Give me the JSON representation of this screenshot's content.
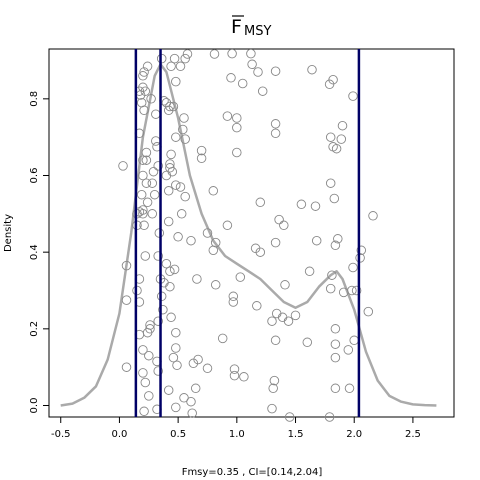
{
  "chart_data": {
    "type": "scatter",
    "title_main": "F",
    "title_sub": "MSY",
    "xlabel": "Fmsy=0.35 , CI=[0.14,2.04]",
    "ylabel": "Density",
    "xlim": [
      -0.6,
      2.85
    ],
    "ylim": [
      -0.03,
      0.93
    ],
    "x_ticks": [
      -0.5,
      0.0,
      0.5,
      1.0,
      1.5,
      2.0,
      2.5
    ],
    "x_tick_labels": [
      "-0.5",
      "0.0",
      "0.5",
      "1.0",
      "1.5",
      "2.0",
      "2.5"
    ],
    "y_ticks": [
      0.0,
      0.2,
      0.4,
      0.6,
      0.8
    ],
    "y_tick_labels": [
      "0.0",
      "0.2",
      "0.4",
      "0.6",
      "0.8"
    ],
    "vlines": [
      0.14,
      0.35,
      2.04
    ],
    "vline_color": "#000066",
    "density_color": "#aaaaaa",
    "point_color": "#888888",
    "density_curve": {
      "x": [
        -0.5,
        -0.4,
        -0.3,
        -0.2,
        -0.1,
        0.0,
        0.1,
        0.2,
        0.3,
        0.35,
        0.4,
        0.5,
        0.6,
        0.7,
        0.8,
        0.9,
        1.0,
        1.1,
        1.2,
        1.3,
        1.4,
        1.5,
        1.6,
        1.7,
        1.8,
        1.85,
        1.9,
        2.0,
        2.1,
        2.2,
        2.3,
        2.4,
        2.5,
        2.6,
        2.7
      ],
      "y": [
        0.0,
        0.005,
        0.02,
        0.05,
        0.12,
        0.24,
        0.45,
        0.7,
        0.86,
        0.89,
        0.87,
        0.75,
        0.6,
        0.5,
        0.43,
        0.39,
        0.37,
        0.35,
        0.33,
        0.3,
        0.27,
        0.255,
        0.27,
        0.31,
        0.34,
        0.35,
        0.33,
        0.25,
        0.14,
        0.065,
        0.025,
        0.01,
        0.003,
        0.001,
        0.0
      ]
    },
    "points": [
      [
        0.36,
        0.905
      ],
      [
        0.47,
        0.905
      ],
      [
        0.56,
        0.905
      ],
      [
        0.58,
        0.917
      ],
      [
        0.81,
        0.917
      ],
      [
        0.96,
        0.918
      ],
      [
        1.12,
        0.918
      ],
      [
        0.24,
        0.885
      ],
      [
        0.44,
        0.885
      ],
      [
        0.52,
        0.885
      ],
      [
        1.13,
        0.89
      ],
      [
        1.64,
        0.876
      ],
      [
        1.33,
        0.872
      ],
      [
        1.18,
        0.87
      ],
      [
        0.2,
        0.86
      ],
      [
        0.21,
        0.87
      ],
      [
        0.95,
        0.855
      ],
      [
        1.05,
        0.84
      ],
      [
        1.82,
        0.85
      ],
      [
        1.79,
        0.838
      ],
      [
        1.22,
        0.82
      ],
      [
        0.48,
        0.845
      ],
      [
        0.2,
        0.83
      ],
      [
        0.22,
        0.82
      ],
      [
        0.18,
        0.81
      ],
      [
        1.99,
        0.807
      ],
      [
        0.27,
        0.8
      ],
      [
        0.38,
        0.795
      ],
      [
        0.4,
        0.79
      ],
      [
        0.43,
        0.78
      ],
      [
        0.46,
        0.78
      ],
      [
        0.42,
        0.77
      ],
      [
        0.19,
        0.79
      ],
      [
        0.17,
        0.82
      ],
      [
        0.21,
        0.77
      ],
      [
        0.31,
        0.76
      ],
      [
        0.55,
        0.75
      ],
      [
        0.92,
        0.755
      ],
      [
        1.0,
        0.75
      ],
      [
        1.0,
        0.725
      ],
      [
        1.33,
        0.735
      ],
      [
        1.33,
        0.71
      ],
      [
        1.9,
        0.73
      ],
      [
        1.8,
        0.7
      ],
      [
        1.89,
        0.695
      ],
      [
        0.54,
        0.72
      ],
      [
        0.48,
        0.7
      ],
      [
        0.56,
        0.695
      ],
      [
        0.17,
        0.71
      ],
      [
        0.31,
        0.69
      ],
      [
        0.32,
        0.675
      ],
      [
        1.82,
        0.675
      ],
      [
        1.85,
        0.67
      ],
      [
        0.23,
        0.66
      ],
      [
        0.44,
        0.655
      ],
      [
        0.7,
        0.665
      ],
      [
        0.7,
        0.645
      ],
      [
        0.2,
        0.64
      ],
      [
        0.23,
        0.64
      ],
      [
        1.0,
        0.66
      ],
      [
        0.43,
        0.63
      ],
      [
        0.33,
        0.625
      ],
      [
        0.43,
        0.62
      ],
      [
        0.45,
        0.61
      ],
      [
        0.4,
        0.6
      ],
      [
        0.29,
        0.61
      ],
      [
        0.03,
        0.625
      ],
      [
        0.2,
        0.6
      ],
      [
        0.28,
        0.58
      ],
      [
        0.23,
        0.58
      ],
      [
        0.48,
        0.575
      ],
      [
        0.52,
        0.57
      ],
      [
        0.3,
        0.55
      ],
      [
        0.42,
        0.56
      ],
      [
        0.19,
        0.55
      ],
      [
        0.8,
        0.56
      ],
      [
        1.8,
        0.58
      ],
      [
        1.83,
        0.54
      ],
      [
        0.24,
        0.53
      ],
      [
        0.56,
        0.545
      ],
      [
        0.2,
        0.51
      ],
      [
        0.28,
        0.5
      ],
      [
        0.17,
        0.505
      ],
      [
        0.2,
        0.5
      ],
      [
        0.15,
        0.5
      ],
      [
        0.53,
        0.5
      ],
      [
        1.2,
        0.53
      ],
      [
        1.55,
        0.525
      ],
      [
        1.67,
        0.52
      ],
      [
        2.16,
        0.495
      ],
      [
        0.21,
        0.47
      ],
      [
        0.15,
        0.47
      ],
      [
        0.42,
        0.48
      ],
      [
        0.92,
        0.47
      ],
      [
        1.36,
        0.485
      ],
      [
        1.4,
        0.47
      ],
      [
        0.75,
        0.45
      ],
      [
        0.34,
        0.45
      ],
      [
        0.5,
        0.44
      ],
      [
        1.68,
        0.43
      ],
      [
        1.86,
        0.435
      ],
      [
        1.33,
        0.425
      ],
      [
        0.82,
        0.425
      ],
      [
        0.8,
        0.405
      ],
      [
        0.61,
        0.43
      ],
      [
        0.22,
        0.39
      ],
      [
        0.33,
        0.39
      ],
      [
        0.4,
        0.37
      ],
      [
        1.16,
        0.41
      ],
      [
        1.2,
        0.4
      ],
      [
        1.84,
        0.418
      ],
      [
        2.06,
        0.405
      ],
      [
        2.05,
        0.385
      ],
      [
        0.43,
        0.35
      ],
      [
        0.47,
        0.355
      ],
      [
        1.03,
        0.335
      ],
      [
        0.66,
        0.33
      ],
      [
        0.06,
        0.365
      ],
      [
        1.62,
        0.35
      ],
      [
        1.99,
        0.36
      ],
      [
        0.43,
        0.31
      ],
      [
        0.35,
        0.33
      ],
      [
        0.38,
        0.32
      ],
      [
        0.17,
        0.33
      ],
      [
        0.82,
        0.315
      ],
      [
        1.41,
        0.315
      ],
      [
        0.15,
        0.3
      ],
      [
        1.81,
        0.34
      ],
      [
        1.91,
        0.295
      ],
      [
        1.98,
        0.3
      ],
      [
        2.02,
        0.3
      ],
      [
        0.06,
        0.275
      ],
      [
        0.36,
        0.285
      ],
      [
        0.97,
        0.285
      ],
      [
        0.97,
        0.27
      ],
      [
        0.17,
        0.27
      ],
      [
        1.8,
        0.305
      ],
      [
        0.37,
        0.25
      ],
      [
        1.17,
        0.26
      ],
      [
        0.44,
        0.23
      ],
      [
        1.34,
        0.24
      ],
      [
        1.44,
        0.22
      ],
      [
        1.39,
        0.23
      ],
      [
        1.5,
        0.235
      ],
      [
        1.3,
        0.22
      ],
      [
        2.12,
        0.245
      ],
      [
        0.33,
        0.22
      ],
      [
        0.26,
        0.21
      ],
      [
        0.26,
        0.2
      ],
      [
        0.24,
        0.19
      ],
      [
        0.17,
        0.185
      ],
      [
        0.48,
        0.19
      ],
      [
        1.84,
        0.2
      ],
      [
        0.88,
        0.175
      ],
      [
        1.33,
        0.17
      ],
      [
        1.6,
        0.165
      ],
      [
        2.0,
        0.17
      ],
      [
        0.48,
        0.15
      ],
      [
        0.46,
        0.125
      ],
      [
        0.25,
        0.13
      ],
      [
        0.2,
        0.145
      ],
      [
        1.84,
        0.16
      ],
      [
        1.95,
        0.145
      ],
      [
        1.84,
        0.125
      ],
      [
        0.67,
        0.12
      ],
      [
        0.63,
        0.11
      ],
      [
        0.49,
        0.105
      ],
      [
        0.32,
        0.115
      ],
      [
        0.06,
        0.1
      ],
      [
        0.75,
        0.097
      ],
      [
        0.98,
        0.095
      ],
      [
        0.2,
        0.085
      ],
      [
        0.33,
        0.09
      ],
      [
        0.98,
        0.078
      ],
      [
        1.06,
        0.075
      ],
      [
        1.32,
        0.065
      ],
      [
        0.22,
        0.06
      ],
      [
        0.42,
        0.04
      ],
      [
        1.31,
        0.045
      ],
      [
        1.84,
        0.045
      ],
      [
        1.96,
        0.045
      ],
      [
        0.65,
        0.045
      ],
      [
        0.25,
        0.025
      ],
      [
        0.55,
        0.02
      ],
      [
        0.61,
        0.01
      ],
      [
        0.48,
        -0.005
      ],
      [
        0.32,
        -0.01
      ],
      [
        0.21,
        -0.015
      ],
      [
        1.3,
        -0.008
      ],
      [
        0.62,
        -0.02
      ],
      [
        1.45,
        -0.03
      ],
      [
        1.79,
        -0.03
      ]
    ]
  }
}
